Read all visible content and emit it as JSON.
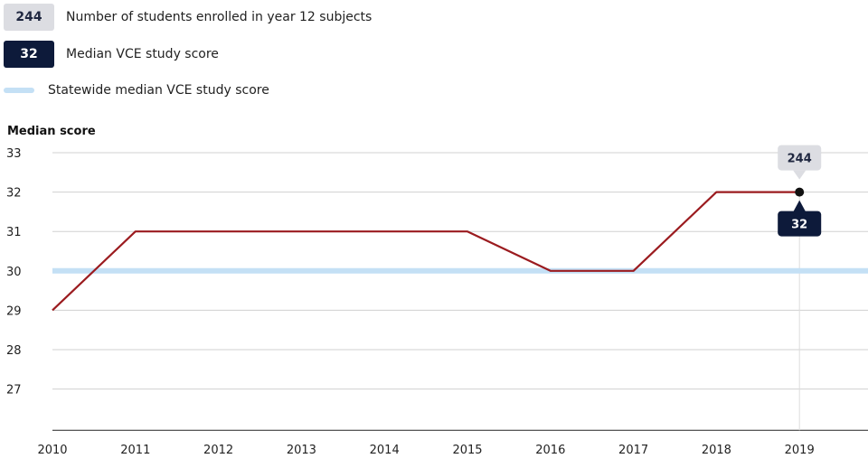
{
  "legend": {
    "enrolled_badge": "244",
    "enrolled_label": "Number of students enrolled in year 12 subjects",
    "median_badge": "32",
    "median_label": "Median VCE study score",
    "statewide_label": "Statewide median VCE study score"
  },
  "tooltip": {
    "enrolled": "244",
    "median": "32"
  },
  "colors": {
    "median_line": "#9b1b1f",
    "statewide_line": "#c4e0f5",
    "badge_light": "#dcdde2",
    "badge_dark": "#0d1a3a"
  },
  "chart_data": {
    "type": "line",
    "title": "",
    "ylabel": "Median score",
    "xlabel": "",
    "x": [
      "2010",
      "2011",
      "2012",
      "2013",
      "2014",
      "2015",
      "2016",
      "2017",
      "2018",
      "2019"
    ],
    "series": [
      {
        "name": "Median VCE study score",
        "values": [
          29,
          31,
          31,
          31,
          31,
          31,
          30,
          30,
          32,
          32
        ]
      },
      {
        "name": "Statewide median VCE study score",
        "values": [
          30,
          30,
          30,
          30,
          30,
          30,
          30,
          30,
          30,
          30
        ]
      }
    ],
    "yticks": [
      27,
      28,
      29,
      30,
      31,
      32,
      33
    ],
    "ylim": [
      26,
      33
    ],
    "grid": true,
    "highlighted_point": {
      "x": "2019",
      "y": 32,
      "enrolled": 244
    }
  }
}
